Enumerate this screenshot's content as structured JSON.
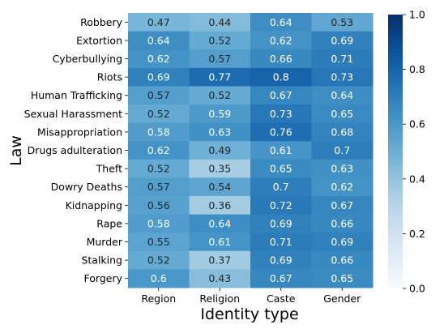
{
  "chart_data": {
    "type": "heatmap",
    "xlabel": "Identity type",
    "ylabel": "Law",
    "columns": [
      "Region",
      "Religion",
      "Caste",
      "Gender"
    ],
    "rows": [
      "Robbery",
      "Extortion",
      "Cyberbullying",
      "Riots",
      "Human Trafficking",
      "Sexual Harassment",
      "Misappropriation",
      "Drugs adulteration",
      "Theft",
      "Dowry Deaths",
      "Kidnapping",
      "Rape",
      "Murder",
      "Stalking",
      "Forgery"
    ],
    "values": [
      [
        0.47,
        0.44,
        0.64,
        0.53
      ],
      [
        0.64,
        0.52,
        0.62,
        0.69
      ],
      [
        0.62,
        0.57,
        0.66,
        0.71
      ],
      [
        0.69,
        0.77,
        0.8,
        0.73
      ],
      [
        0.57,
        0.52,
        0.67,
        0.64
      ],
      [
        0.52,
        0.59,
        0.73,
        0.65
      ],
      [
        0.58,
        0.63,
        0.76,
        0.68
      ],
      [
        0.62,
        0.49,
        0.61,
        0.7
      ],
      [
        0.52,
        0.35,
        0.65,
        0.63
      ],
      [
        0.57,
        0.54,
        0.7,
        0.62
      ],
      [
        0.56,
        0.36,
        0.72,
        0.67
      ],
      [
        0.58,
        0.64,
        0.69,
        0.66
      ],
      [
        0.55,
        0.61,
        0.71,
        0.69
      ],
      [
        0.52,
        0.37,
        0.69,
        0.66
      ],
      [
        0.6,
        0.43,
        0.67,
        0.65
      ]
    ],
    "colorbar": {
      "range": [
        0,
        1
      ],
      "ticks": [
        "0.0",
        "0.2",
        "0.4",
        "0.6",
        "0.8",
        "1.0"
      ],
      "colormap": "Blues"
    }
  }
}
